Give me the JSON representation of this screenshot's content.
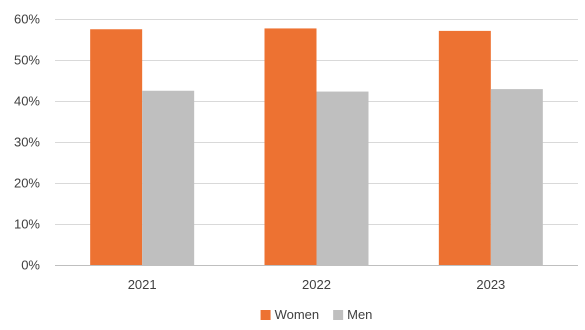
{
  "chart_data": {
    "type": "bar",
    "title": "",
    "xlabel": "",
    "ylabel": "",
    "categories": [
      "2021",
      "2022",
      "2023"
    ],
    "series": [
      {
        "name": "Women",
        "values": [
          57.5,
          57.7,
          57.1
        ],
        "color": "#ED7232"
      },
      {
        "name": "Men",
        "values": [
          42.5,
          42.3,
          42.9
        ],
        "color": "#BFBFBF"
      }
    ],
    "ylim": [
      0,
      60
    ],
    "yticks": [
      0,
      10,
      20,
      30,
      40,
      50,
      60
    ],
    "ytick_labels": [
      "0%",
      "10%",
      "20%",
      "30%",
      "40%",
      "50%",
      "60%"
    ],
    "value_format": "percent",
    "grid": true,
    "legend": "bottom-center"
  }
}
